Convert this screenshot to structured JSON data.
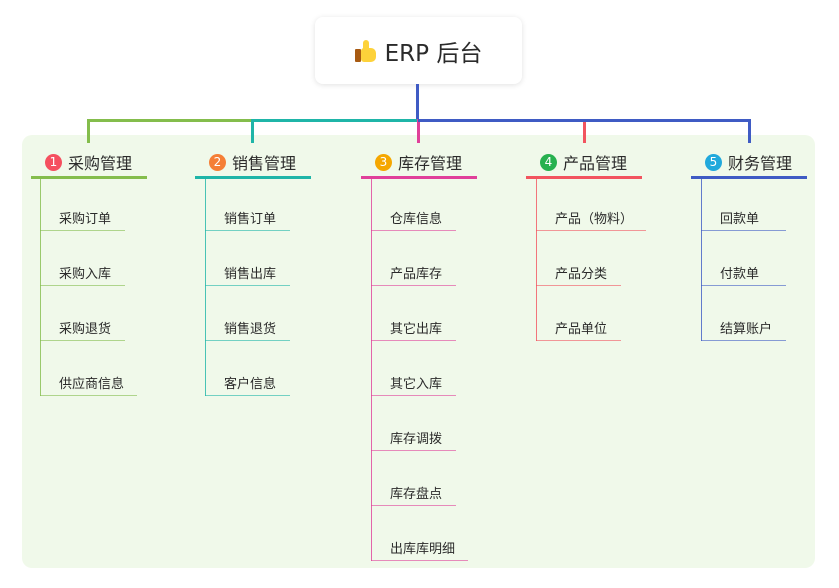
{
  "root": {
    "title": "ERP 后台",
    "icon": "thumbs-up-icon"
  },
  "branches": [
    {
      "number": "1",
      "title": "采购管理",
      "line_color": "#84bd4c",
      "badge_color": "#f5505f",
      "items": [
        "采购订单",
        "采购入库",
        "采购退货",
        "供应商信息"
      ]
    },
    {
      "number": "2",
      "title": "销售管理",
      "line_color": "#1fb5a8",
      "badge_color": "#f57f36",
      "items": [
        "销售订单",
        "销售出库",
        "销售退货",
        "客户信息"
      ]
    },
    {
      "number": "3",
      "title": "库存管理",
      "line_color": "#e0409a",
      "badge_color": "#f5a700",
      "items": [
        "仓库信息",
        "产品库存",
        "其它出库",
        "其它入库",
        "库存调拨",
        "库存盘点",
        "出库库明细"
      ]
    },
    {
      "number": "4",
      "title": "产品管理",
      "line_color": "#f2545f",
      "badge_color": "#27b14f",
      "items": [
        "产品（物料）",
        "产品分类",
        "产品单位"
      ]
    },
    {
      "number": "5",
      "title": "财务管理",
      "line_color": "#3f5bc4",
      "badge_color": "#21a9dc",
      "items": [
        "回款单",
        "付款单",
        "结算账户"
      ]
    }
  ]
}
